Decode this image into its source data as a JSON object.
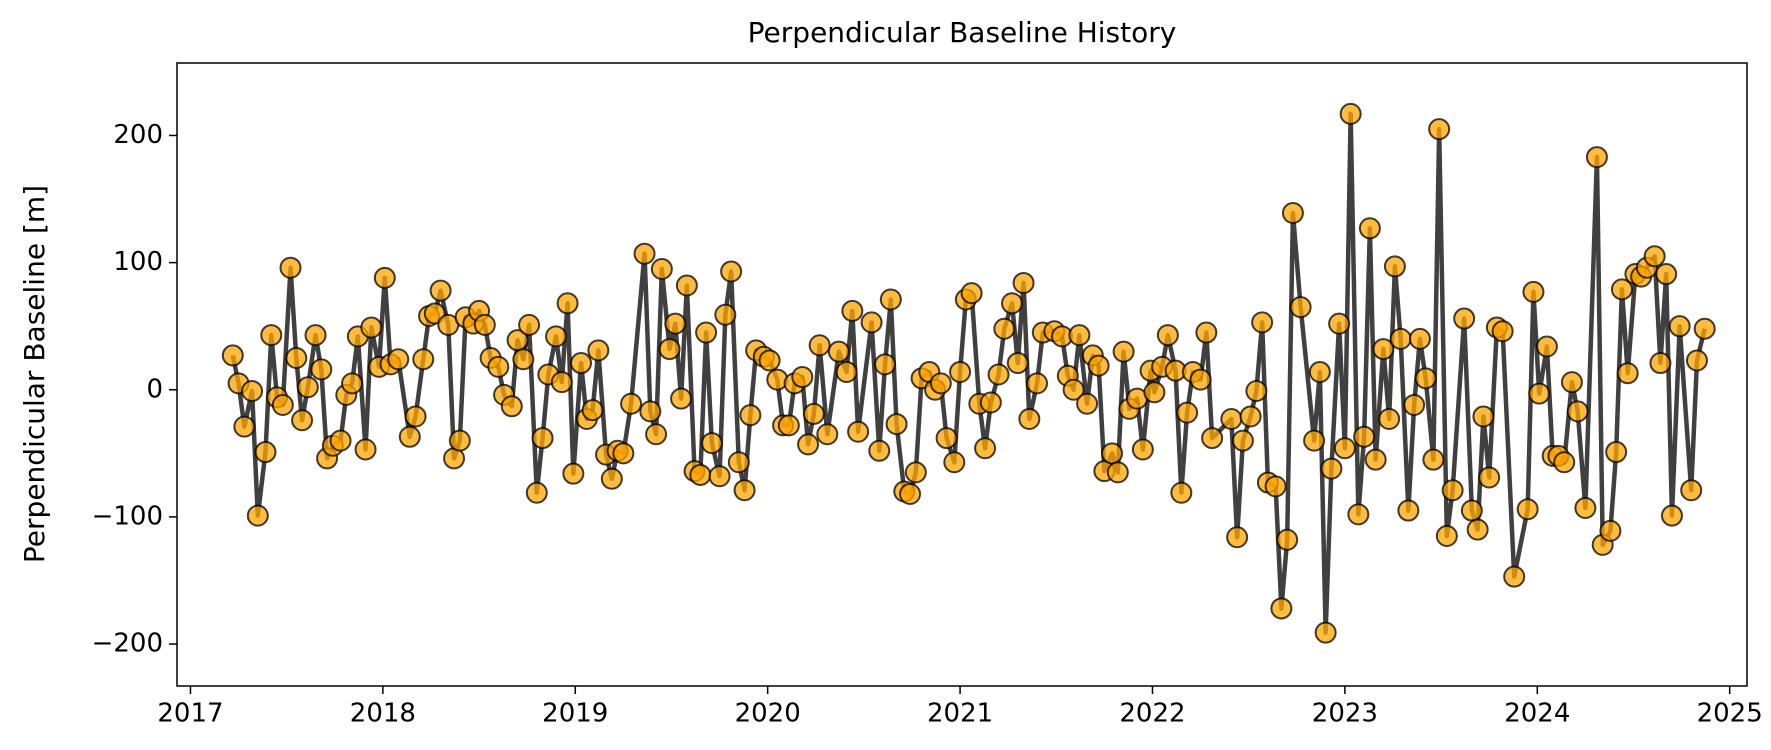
{
  "chart_data": {
    "type": "line",
    "title": "Perpendicular Baseline History",
    "ylabel": "Perpendicular Baseline [m]",
    "line_color": "#404040",
    "marker_color": "#ffa500",
    "xlim": [
      2016.93,
      2025.09
    ],
    "xticks": [
      2017,
      2018,
      2019,
      2020,
      2021,
      2022,
      2023,
      2024,
      2025
    ],
    "ylim": [
      -233,
      257
    ],
    "yticks": [
      {
        "value": -200,
        "label": "−200"
      },
      {
        "value": -100,
        "label": "−100"
      },
      0,
      100,
      200
    ],
    "x": [
      2017.22,
      2017.25,
      2017.28,
      2017.32,
      2017.35,
      2017.39,
      2017.42,
      2017.45,
      2017.48,
      2017.52,
      2017.55,
      2017.58,
      2017.61,
      2017.65,
      2017.68,
      2017.71,
      2017.74,
      2017.78,
      2017.81,
      2017.84,
      2017.87,
      2017.91,
      2017.94,
      2017.98,
      2018.01,
      2018.04,
      2018.08,
      2018.14,
      2018.17,
      2018.21,
      2018.24,
      2018.27,
      2018.3,
      2018.34,
      2018.37,
      2018.4,
      2018.43,
      2018.47,
      2018.5,
      2018.53,
      2018.56,
      2018.6,
      2018.63,
      2018.67,
      2018.7,
      2018.73,
      2018.76,
      2018.8,
      2018.83,
      2018.86,
      2018.9,
      2018.93,
      2018.96,
      2018.99,
      2019.03,
      2019.06,
      2019.09,
      2019.12,
      2019.16,
      2019.19,
      2019.22,
      2019.25,
      2019.29,
      2019.36,
      2019.39,
      2019.42,
      2019.45,
      2019.49,
      2019.52,
      2019.55,
      2019.58,
      2019.62,
      2019.65,
      2019.68,
      2019.71,
      2019.75,
      2019.78,
      2019.81,
      2019.85,
      2019.88,
      2019.91,
      2019.94,
      2019.98,
      2020.01,
      2020.05,
      2020.08,
      2020.11,
      2020.14,
      2020.18,
      2020.21,
      2020.24,
      2020.27,
      2020.31,
      2020.37,
      2020.41,
      2020.44,
      2020.47,
      2020.54,
      2020.58,
      2020.61,
      2020.64,
      2020.67,
      2020.71,
      2020.74,
      2020.77,
      2020.8,
      2020.84,
      2020.87,
      2020.9,
      2020.93,
      2020.97,
      2021.0,
      2021.03,
      2021.06,
      2021.1,
      2021.13,
      2021.16,
      2021.2,
      2021.23,
      2021.27,
      2021.3,
      2021.33,
      2021.36,
      2021.4,
      2021.43,
      2021.49,
      2021.53,
      2021.56,
      2021.59,
      2021.62,
      2021.66,
      2021.69,
      2021.72,
      2021.75,
      2021.79,
      2021.82,
      2021.85,
      2021.88,
      2021.92,
      2021.95,
      2021.99,
      2022.01,
      2022.05,
      2022.08,
      2022.12,
      2022.15,
      2022.18,
      2022.21,
      2022.25,
      2022.28,
      2022.31,
      2022.41,
      2022.44,
      2022.47,
      2022.51,
      2022.54,
      2022.57,
      2022.6,
      2022.64,
      2022.67,
      2022.7,
      2022.73,
      2022.77,
      2022.84,
      2022.87,
      2022.9,
      2022.93,
      2022.97,
      2023.0,
      2023.03,
      2023.07,
      2023.1,
      2023.13,
      2023.16,
      2023.2,
      2023.23,
      2023.26,
      2023.29,
      2023.33,
      2023.36,
      2023.39,
      2023.42,
      2023.46,
      2023.49,
      2023.53,
      2023.56,
      2023.62,
      2023.66,
      2023.69,
      2023.72,
      2023.75,
      2023.79,
      2023.82,
      2023.88,
      2023.95,
      2023.98,
      2024.01,
      2024.05,
      2024.08,
      2024.11,
      2024.14,
      2024.18,
      2024.21,
      2024.25,
      2024.31,
      2024.34,
      2024.38,
      2024.41,
      2024.44,
      2024.47,
      2024.51,
      2024.54,
      2024.57,
      2024.61,
      2024.64,
      2024.67,
      2024.7,
      2024.74,
      2024.8,
      2024.83,
      2024.87
    ],
    "values": [
      27,
      5,
      -29,
      -1,
      -99,
      -49,
      43,
      -6,
      -12,
      96,
      25,
      -24,
      2,
      43,
      16,
      -54,
      -44,
      -40,
      -4,
      5,
      42,
      -47,
      49,
      18,
      88,
      20,
      24,
      -37,
      -21,
      24,
      58,
      60,
      78,
      51,
      -54,
      -40,
      57,
      52,
      62,
      51,
      25,
      18,
      -4,
      -13,
      39,
      24,
      51,
      -81,
      -38,
      12,
      42,
      6,
      68,
      -66,
      21,
      -23,
      -16,
      31,
      -51,
      -70,
      -48,
      -50,
      -11,
      107,
      -17,
      -35,
      95,
      32,
      52,
      -7,
      82,
      -64,
      -67,
      45,
      -42,
      -68,
      59,
      93,
      -57,
      -79,
      -20,
      31,
      26,
      23,
      8,
      -28,
      -28,
      5,
      10,
      -43,
      -19,
      35,
      -35,
      30,
      14,
      62,
      -33,
      53,
      -48,
      20,
      71,
      -27,
      -80,
      -82,
      -65,
      9,
      14,
      0,
      5,
      -38,
      -57,
      14,
      71,
      76,
      -11,
      -46,
      -10,
      12,
      48,
      68,
      21,
      84,
      -23,
      5,
      45,
      46,
      42,
      11,
      0,
      43,
      -11,
      27,
      19,
      -64,
      -50,
      -65,
      30,
      -15,
      -7,
      -47,
      15,
      -2,
      18,
      43,
      15,
      -81,
      -18,
      14,
      8,
      45,
      -38,
      -23,
      -116,
      -40,
      -21,
      -1,
      53,
      -73,
      -76,
      -172,
      -118,
      139,
      65,
      -40,
      14,
      -191,
      -62,
      52,
      -46,
      217,
      -98,
      -37,
      127,
      -55,
      32,
      -23,
      97,
      40,
      -95,
      -12,
      40,
      9,
      -55,
      205,
      -115,
      -79,
      56,
      -95,
      -110,
      -21,
      -69,
      49,
      46,
      -147,
      -94,
      77,
      -3,
      34,
      -52,
      -52,
      -57,
      6,
      -17,
      -93,
      183,
      -122,
      -111,
      -49,
      79,
      13,
      91,
      89,
      96,
      105,
      21,
      91,
      -99,
      50,
      -79,
      23,
      48
    ]
  }
}
